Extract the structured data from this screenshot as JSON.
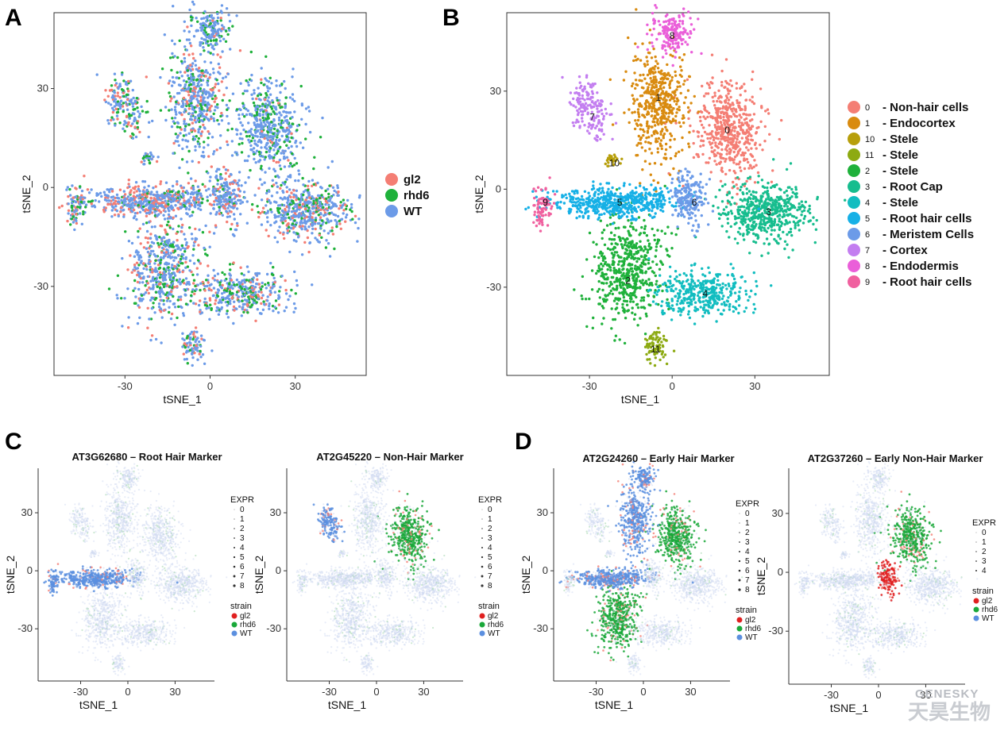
{
  "panels": {
    "A": {
      "letter": "A"
    },
    "B": {
      "letter": "B"
    },
    "C": {
      "letter": "C"
    },
    "D": {
      "letter": "D"
    }
  },
  "colors": {
    "gl2": "#f47e74",
    "rhd6": "#1fb13b",
    "WT": "#6c9be8",
    "gl2_small": "#e02020",
    "rhd6_small": "#1aa83a",
    "WT_small": "#5b8fdf"
  },
  "watermark": {
    "en": "GENESKY",
    "cn": "天昊生物"
  },
  "chart_data": [
    {
      "type": "scatter",
      "panel": "A",
      "xlabel": "tSNE_1",
      "ylabel": "tSNE_2",
      "xticks": [
        -30,
        0,
        30
      ],
      "yticks": [
        30,
        0,
        -30
      ],
      "xlim": [
        -55,
        55
      ],
      "ylim": [
        -57,
        53
      ],
      "legend": {
        "placement": "right",
        "entries": [
          "gl2",
          "rhd6",
          "WT"
        ]
      }
    },
    {
      "type": "scatter",
      "panel": "B",
      "xlabel": "tSNE_1",
      "ylabel": "tSNE_2",
      "xticks": [
        -30,
        0,
        30
      ],
      "yticks": [
        30,
        0,
        -30
      ],
      "xlim": [
        -60,
        57
      ],
      "ylim": [
        -57,
        54
      ],
      "legend": {
        "placement": "right",
        "entries": [
          {
            "id": "0",
            "name": "- Non-hair cells",
            "color": "#f47e74"
          },
          {
            "id": "1",
            "name": "- Endocortex",
            "color": "#d98b10"
          },
          {
            "id": "10",
            "name": "- Stele",
            "color": "#b79f0c"
          },
          {
            "id": "11",
            "name": "- Stele",
            "color": "#8daa12"
          },
          {
            "id": "2",
            "name": "- Stele",
            "color": "#1fb13b"
          },
          {
            "id": "3",
            "name": "- Root Cap",
            "color": "#17bd8e"
          },
          {
            "id": "4",
            "name": "- Stele",
            "color": "#12bdc0"
          },
          {
            "id": "5",
            "name": "- Root hair cells",
            "color": "#16b0e6"
          },
          {
            "id": "6",
            "name": "- Meristem Cells",
            "color": "#6c9be8"
          },
          {
            "id": "7",
            "name": "- Cortex",
            "color": "#c37ef0"
          },
          {
            "id": "8",
            "name": "- Endodermis",
            "color": "#ea5fd9"
          },
          {
            "id": "9",
            "name": "- Root hair cells",
            "color": "#f0609f"
          }
        ]
      },
      "clusters": [
        {
          "label": "0",
          "x": 20,
          "y": 18
        },
        {
          "label": "1",
          "x": -5,
          "y": 28
        },
        {
          "label": "2",
          "x": -16,
          "y": -28
        },
        {
          "label": "3",
          "x": 35,
          "y": -7
        },
        {
          "label": "4",
          "x": 12,
          "y": -32
        },
        {
          "label": "5",
          "x": -19,
          "y": -4
        },
        {
          "label": "6",
          "x": 8,
          "y": -4
        },
        {
          "label": "7",
          "x": -29,
          "y": 22
        },
        {
          "label": "8",
          "x": 0,
          "y": 47
        },
        {
          "label": "9",
          "x": -46,
          "y": -4
        },
        {
          "label": "10",
          "x": -21,
          "y": 8
        },
        {
          "label": "11",
          "x": -6,
          "y": -49
        }
      ]
    },
    {
      "type": "scatter",
      "panel": "C-left",
      "title": "AT3G62680 – Root Hair Marker",
      "xlabel": "tSNE_1",
      "ylabel": "tSNE_2",
      "xticks": [
        -30,
        0,
        30
      ],
      "yticks": [
        30,
        0,
        -30
      ],
      "legend": {
        "expr_title": "EXPR",
        "expr": [
          "0",
          "1",
          "2",
          "3",
          "4",
          "5",
          "6",
          "7",
          "8"
        ],
        "strain_title": "strain",
        "strain": [
          "gl2",
          "rhd6",
          "WT"
        ]
      }
    },
    {
      "type": "scatter",
      "panel": "C-right",
      "title": "AT2G45220 – Non-Hair Marker",
      "xlabel": "tSNE_1",
      "ylabel": "tSNE_2",
      "xticks": [
        -30,
        0,
        30
      ],
      "yticks": [
        30,
        0,
        -30
      ],
      "legend": {
        "expr_title": "EXPR",
        "expr": [
          "0",
          "1",
          "2",
          "3",
          "4",
          "5",
          "6",
          "7",
          "8"
        ],
        "strain_title": "strain",
        "strain": [
          "gl2",
          "rhd6",
          "WT"
        ]
      }
    },
    {
      "type": "scatter",
      "panel": "D-left",
      "title": "AT2G24260 – Early Hair Marker",
      "xlabel": "tSNE_1",
      "ylabel": "tSNE_2",
      "xticks": [
        -30,
        0,
        30
      ],
      "yticks": [
        30,
        0,
        -30
      ],
      "legend": {
        "expr_title": "EXPR",
        "expr": [
          "0",
          "1",
          "2",
          "3",
          "4",
          "5",
          "6",
          "7",
          "8"
        ],
        "strain_title": "strain",
        "strain": [
          "gl2",
          "rhd6",
          "WT"
        ]
      }
    },
    {
      "type": "scatter",
      "panel": "D-right",
      "title": "AT2G37260 – Early Non-Hair Marker",
      "xlabel": "tSNE_1",
      "ylabel": "tSNE_2",
      "xticks": [
        -30,
        0,
        30
      ],
      "yticks": [
        30,
        0,
        -30
      ],
      "legend": {
        "expr_title": "EXPR",
        "expr": [
          "0",
          "1",
          "2",
          "3",
          "4"
        ],
        "strain_title": "strain",
        "strain": [
          "gl2",
          "rhd6",
          "WT"
        ]
      }
    }
  ]
}
